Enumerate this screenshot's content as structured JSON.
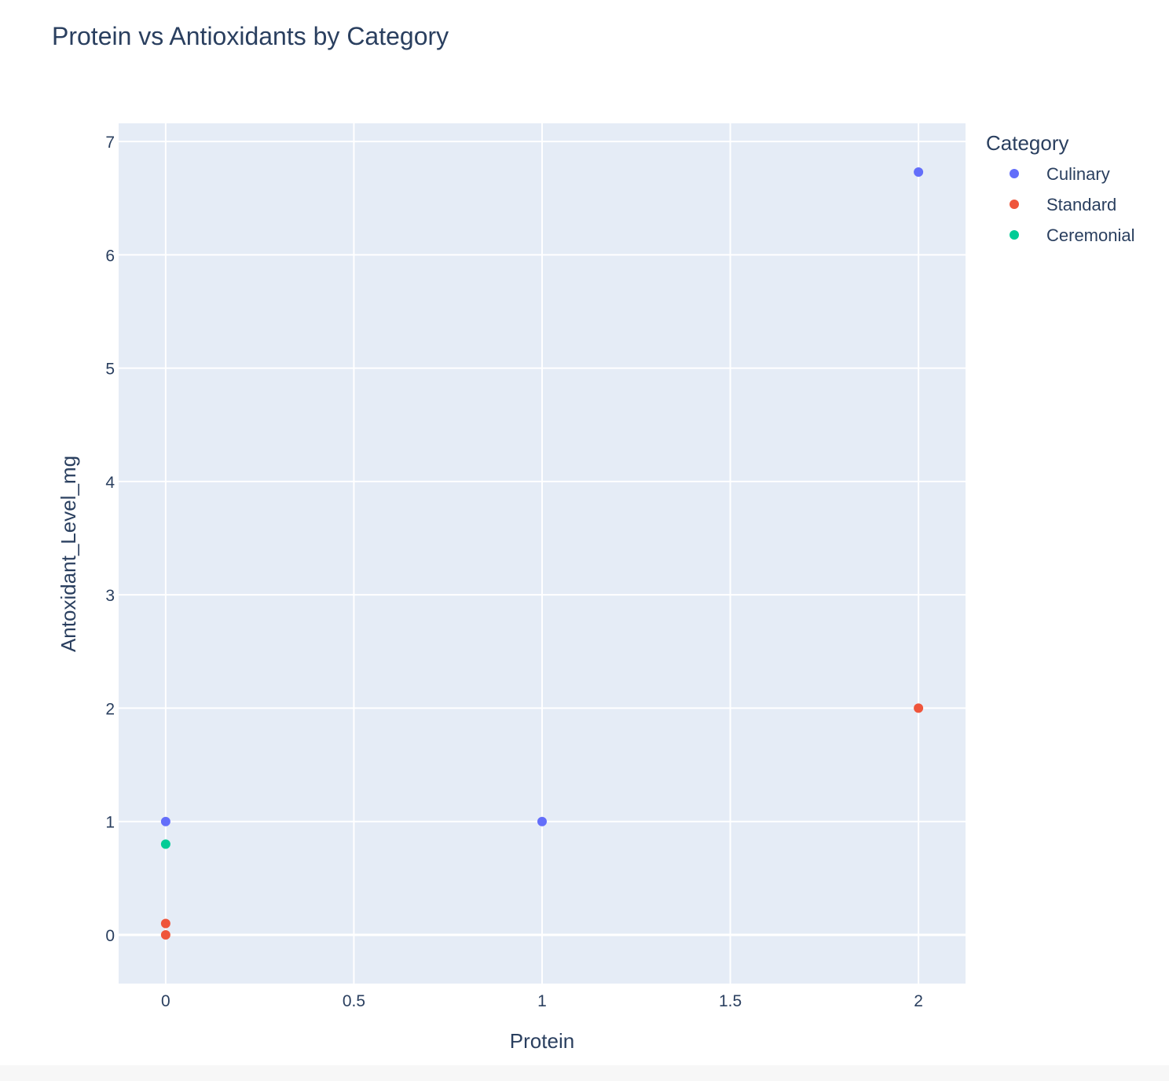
{
  "chart_data": {
    "type": "scatter",
    "title": "Protein vs Antioxidants by Category",
    "xlabel": "Protein",
    "ylabel": "Antoxidant_Level_mg",
    "xlim": [
      -0.125,
      2.125
    ],
    "ylim": [
      -0.43,
      7.16
    ],
    "xticks": [
      0,
      0.5,
      1,
      1.5,
      2
    ],
    "xtick_labels": [
      "0",
      "0.5",
      "1",
      "1.5",
      "2"
    ],
    "yticks": [
      0,
      1,
      2,
      3,
      4,
      5,
      6,
      7
    ],
    "ytick_labels": [
      "0",
      "1",
      "2",
      "3",
      "4",
      "5",
      "6",
      "7"
    ],
    "grid": true,
    "legend": {
      "title": "Category",
      "position": "right"
    },
    "series": [
      {
        "name": "Culinary",
        "color": "#636efa",
        "points": [
          {
            "x": 0,
            "y": 1
          },
          {
            "x": 1,
            "y": 1
          },
          {
            "x": 2,
            "y": 6.73
          }
        ]
      },
      {
        "name": "Standard",
        "color": "#ef553b",
        "points": [
          {
            "x": 0,
            "y": 0.1
          },
          {
            "x": 0,
            "y": 0
          },
          {
            "x": 2,
            "y": 2
          }
        ]
      },
      {
        "name": "Ceremonial",
        "color": "#00cc96",
        "points": [
          {
            "x": 0,
            "y": 0.8
          }
        ]
      }
    ]
  }
}
